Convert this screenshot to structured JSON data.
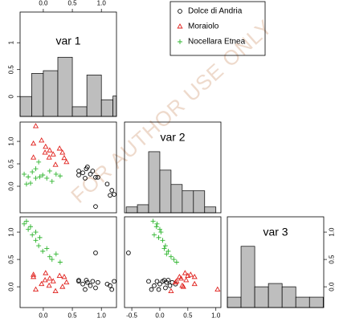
{
  "watermark": "FOR AUTHOR USE ONLY",
  "chart_data": [
    {
      "type": "histogram",
      "title": "var 1",
      "bins": [
        -0.4,
        -0.2,
        0,
        0.25,
        0.5,
        0.75,
        1.0,
        1.2,
        1.26
      ],
      "values": [
        0.0,
        0.43,
        0.48,
        0.73,
        -0.19,
        0.4,
        -0.06,
        0.01
      ],
      "color": "#bebebe",
      "xlim": [
        -0.4,
        1.26
      ],
      "ylim": [
        -0.37,
        1.57
      ],
      "xticks": [
        {
          "value": 0,
          "label": "0.0"
        },
        0.5,
        {
          "value": 1,
          "label": "1.0"
        }
      ],
      "xaxis_side": "top",
      "yticks": [
        0,
        0.5,
        1
      ],
      "yaxis_side": "left"
    },
    {
      "type": "scatter",
      "xlim": [
        -0.4,
        1.26
      ],
      "ylim": [
        -0.59,
        1.43
      ],
      "yticks": [
        {
          "value": 0,
          "label": "0.0"
        },
        0.5,
        {
          "value": 1,
          "label": "1.0"
        }
      ],
      "yaxis_side": "left",
      "legend": "top-right",
      "series": [
        {
          "name": "Dolce di Andria",
          "color": "#000000",
          "marker": "circle",
          "x": [
            0.61,
            0.68,
            0.74,
            0.76,
            0.81,
            0.85,
            0.9,
            0.94,
            1.1,
            1.18,
            1.22,
            1.15,
            0.9,
            0.61,
            0.72
          ],
          "values": [
            0.34,
            0.3,
            0.39,
            0.43,
            0.27,
            0.34,
            0.2,
            0.2,
            0.05,
            -0.09,
            -0.18,
            -0.2,
            -0.45,
            0.25,
            0.18
          ]
        },
        {
          "name": "Moraiolo",
          "color": "#e0201c",
          "marker": "triangle",
          "x": [
            -0.13,
            -0.17,
            -0.03,
            0.04,
            0.11,
            0.17,
            0.28,
            0.33,
            0.36,
            0.4,
            0.21,
            0.03,
            0.1,
            -0.17
          ],
          "values": [
            1.34,
            0.95,
            1.02,
            0.88,
            0.8,
            0.71,
            0.84,
            0.75,
            0.63,
            0.54,
            0.48,
            0.75,
            0.64,
            0.64
          ]
        },
        {
          "name": "Nocellara Etnea",
          "color": "#2fb52f",
          "marker": "plus",
          "x": [
            -0.33,
            -0.26,
            -0.19,
            -0.13,
            -0.08,
            -0.06,
            -0.01,
            0.06,
            0.11,
            0.15,
            0.22,
            0.29,
            -0.13,
            -0.22,
            -0.29
          ],
          "values": [
            0.27,
            0.21,
            0.32,
            0.39,
            0.54,
            0.21,
            0.25,
            0.18,
            0.34,
            0.11,
            0.27,
            0.23,
            0.18,
            0.07,
            0.05
          ]
        }
      ]
    },
    {
      "type": "histogram",
      "title": "var 2",
      "bins": [
        -0.6,
        -0.4,
        -0.2,
        0,
        0.2,
        0.4,
        0.6,
        0.8,
        1.0
      ],
      "values": [
        -0.46,
        -0.41,
        0.77,
        0.36,
        0.04,
        -0.1,
        -0.1,
        -0.46
      ],
      "color": "#bebebe",
      "xlim": [
        -0.63,
        1.09
      ],
      "ylim": [
        -0.59,
        1.43
      ]
    },
    {
      "type": "scatter",
      "xlim": [
        -0.4,
        1.26
      ],
      "ylim": [
        -0.38,
        1.28
      ],
      "xticks": [
        {
          "value": 0,
          "label": "0.0"
        },
        0.5,
        {
          "value": 1,
          "label": "1.0"
        }
      ],
      "xaxis_side": "bottom",
      "yticks": [
        {
          "value": 0,
          "label": "0.0"
        },
        0.5,
        {
          "value": 1,
          "label": "1.0"
        }
      ],
      "yaxis_side": "left",
      "series": [
        {
          "color": "#000000",
          "marker": "circle",
          "x": [
            0.61,
            0.68,
            0.74,
            0.76,
            0.81,
            0.85,
            0.9,
            0.94,
            1.1,
            1.18,
            1.22,
            1.15,
            0.9,
            0.61,
            0.72
          ],
          "values": [
            0.1,
            0.05,
            0.12,
            0.08,
            0.02,
            0.1,
            -0.02,
            0.08,
            0.05,
            -0.05,
            0.1,
            0.02,
            0.62,
            0.12,
            -0.05
          ]
        },
        {
          "color": "#e0201c",
          "marker": "triangle",
          "x": [
            -0.13,
            -0.17,
            -0.03,
            0.04,
            0.11,
            0.17,
            0.28,
            0.33,
            0.36,
            0.4,
            0.21,
            0.03,
            0.1,
            -0.17
          ],
          "values": [
            -0.05,
            0.22,
            0.05,
            0.25,
            0.15,
            0.1,
            0.2,
            0.0,
            0.18,
            0.08,
            -0.08,
            0.12,
            0.02,
            0.18
          ]
        },
        {
          "color": "#2fb52f",
          "marker": "plus",
          "x": [
            -0.33,
            -0.26,
            -0.19,
            -0.13,
            -0.08,
            -0.06,
            -0.01,
            0.06,
            0.11,
            0.15,
            0.22,
            0.29,
            -0.13,
            -0.22,
            -0.29
          ],
          "values": [
            1.15,
            1.05,
            0.95,
            0.85,
            0.75,
            0.9,
            0.65,
            0.7,
            0.55,
            0.5,
            0.6,
            0.45,
            1.0,
            1.1,
            1.2
          ]
        }
      ]
    },
    {
      "type": "scatter",
      "xlim": [
        -0.63,
        1.09
      ],
      "ylim": [
        -0.38,
        1.28
      ],
      "xticks": [
        -0.5,
        {
          "value": 0,
          "label": "0.0"
        },
        0.5,
        {
          "value": 1,
          "label": "1.0"
        }
      ],
      "xaxis_side": "bottom",
      "series": [
        {
          "color": "#000000",
          "marker": "circle",
          "x": [
            -0.05,
            0.0,
            0.08,
            0.12,
            0.18,
            0.05,
            0.1,
            0.22,
            0.28,
            -0.15,
            -0.2,
            -0.1,
            -0.56,
            0.15,
            -0.02
          ],
          "values": [
            0.1,
            0.05,
            0.12,
            0.08,
            0.02,
            0.1,
            -0.02,
            0.08,
            0.05,
            -0.05,
            0.1,
            0.02,
            0.62,
            0.12,
            -0.05
          ]
        },
        {
          "color": "#e0201c",
          "marker": "triangle",
          "x": [
            1.03,
            0.55,
            0.62,
            0.45,
            0.38,
            0.3,
            0.5,
            0.42,
            0.35,
            0.28,
            0.2,
            0.47,
            0.4,
            0.62
          ],
          "values": [
            -0.05,
            0.22,
            0.05,
            0.25,
            0.15,
            0.1,
            0.2,
            0.0,
            0.18,
            0.08,
            -0.08,
            0.12,
            0.02,
            0.18
          ]
        },
        {
          "color": "#2fb52f",
          "marker": "plus",
          "x": [
            -0.05,
            0.0,
            -0.1,
            0.05,
            0.1,
            -0.02,
            0.15,
            0.08,
            0.2,
            0.25,
            0.12,
            0.3,
            0.02,
            -0.06,
            -0.12
          ],
          "values": [
            1.15,
            1.05,
            0.95,
            0.85,
            0.75,
            0.9,
            0.65,
            0.7,
            0.55,
            0.5,
            0.6,
            0.45,
            1.0,
            1.1,
            1.2
          ]
        }
      ]
    },
    {
      "type": "histogram",
      "title": "var 3",
      "bins": [
        -0.4,
        -0.15,
        0.1,
        0.35,
        0.6,
        0.85,
        1.1,
        1.35
      ],
      "values": [
        -0.19,
        0.74,
        0.0,
        0.06,
        0.0,
        -0.19,
        -0.19
      ],
      "color": "#bebebe",
      "xlim": [
        -0.4,
        1.36
      ],
      "ylim": [
        -0.38,
        1.28
      ],
      "yticks": [
        {
          "value": 0,
          "label": "0.0"
        },
        0.5,
        {
          "value": 1,
          "label": "1.0"
        }
      ],
      "yaxis_side": "right"
    }
  ]
}
